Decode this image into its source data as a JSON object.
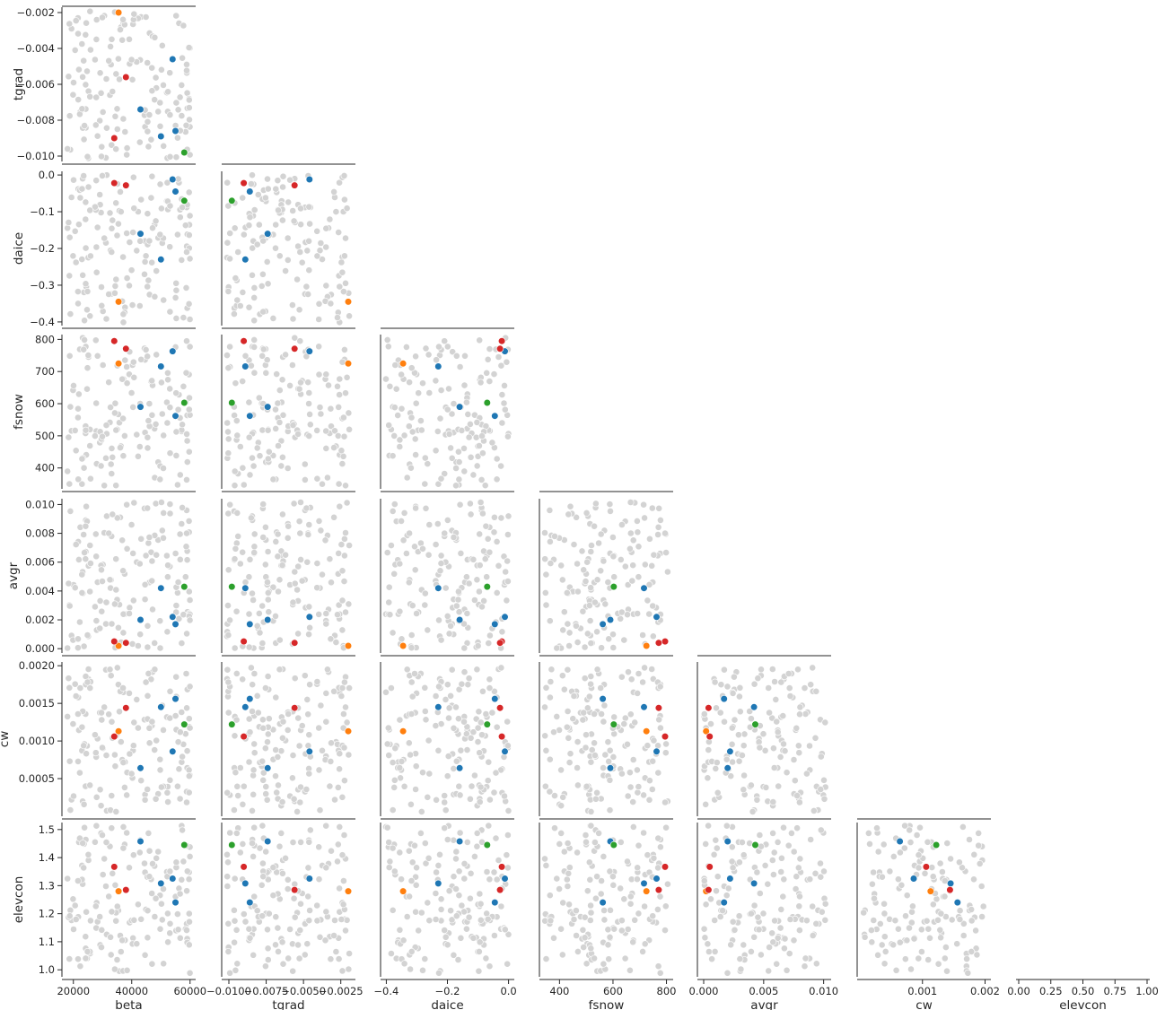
{
  "chart_data": {
    "type": "scatter",
    "variables": [
      "beta",
      "tgrad",
      "daice",
      "fsnow",
      "avgr",
      "cw",
      "elevcon"
    ],
    "background_color": "#d3d3d3",
    "highlight_colors": [
      "#1f77b4",
      "#ff7f0e",
      "#2ca02c",
      "#d62728"
    ],
    "axes": {
      "beta": {
        "label": "beta",
        "range": [
          17000,
          61000
        ],
        "ticks": [
          20000,
          40000,
          60000
        ],
        "tick_labels": [
          "20000",
          "40000",
          "60000"
        ]
      },
      "tgrad": {
        "label": "tgrad",
        "range": [
          -0.0103,
          -0.0017
        ],
        "ticks": [
          -0.01,
          -0.0075,
          -0.005,
          -0.0025
        ],
        "tick_labels": [
          "−0.0100",
          "−0.0075",
          "−0.0050",
          "−0.0025"
        ],
        "y_ticks": [
          -0.01,
          -0.008,
          -0.006,
          -0.004,
          -0.002
        ],
        "y_tick_labels": [
          "−0.010",
          "−0.008",
          "−0.006",
          "−0.004",
          "−0.002"
        ]
      },
      "daice": {
        "label": "daice",
        "range": [
          -0.41,
          0.01
        ],
        "ticks": [
          -0.4,
          -0.2,
          0.0
        ],
        "tick_labels": [
          "−0.4",
          "−0.2",
          "0.0"
        ],
        "y_ticks": [
          -0.4,
          -0.3,
          -0.2,
          -0.1,
          0.0
        ],
        "y_tick_labels": [
          "−0.4",
          "−0.3",
          "−0.2",
          "−0.1",
          "0.0"
        ]
      },
      "fsnow": {
        "label": "fsnow",
        "range": [
          335,
          815
        ],
        "ticks": [
          400,
          600,
          800
        ],
        "tick_labels": [
          "400",
          "600",
          "800"
        ],
        "y_ticks": [
          400,
          500,
          600,
          700,
          800
        ],
        "y_tick_labels": [
          "400",
          "500",
          "600",
          "700",
          "800"
        ]
      },
      "avgr": {
        "label": "avgr",
        "range": [
          -0.0003,
          0.0104
        ],
        "ticks": [
          0.0,
          0.005,
          0.01
        ],
        "tick_labels": [
          "0.000",
          "0.005",
          "0.010"
        ],
        "y_ticks": [
          0.0,
          0.002,
          0.004,
          0.006,
          0.008,
          0.01
        ],
        "y_tick_labels": [
          "0.000",
          "0.002",
          "0.004",
          "0.006",
          "0.008",
          "0.010"
        ]
      },
      "cw": {
        "label": "cw",
        "range": [
          0.0,
          0.00205
        ],
        "ticks": [
          0.001,
          0.002
        ],
        "tick_labels": [
          "0.001",
          "0.002"
        ],
        "y_ticks": [
          0.0005,
          0.001,
          0.0015,
          0.002
        ],
        "y_tick_labels": [
          "0.0005",
          "0.0010",
          "0.0015",
          "0.0020"
        ]
      },
      "elevcon": {
        "label": "elevcon",
        "range": [
          0.0,
          1.0
        ],
        "ticks": [
          0.0,
          0.25,
          0.5,
          0.75,
          1.0
        ],
        "tick_labels": [
          "0.00",
          "0.25",
          "0.50",
          "0.75",
          "1.00"
        ],
        "y_range": [
          0.975,
          1.525
        ],
        "y_ticks": [
          1.0,
          1.1,
          1.2,
          1.3,
          1.4,
          1.5
        ],
        "y_tick_labels": [
          "1.0",
          "1.1",
          "1.2",
          "1.3",
          "1.4",
          "1.5"
        ]
      }
    },
    "highlighted_points": [
      {
        "color": "#1f77b4",
        "beta": 54000,
        "tgrad": -0.0046,
        "daice": -0.012,
        "fsnow": 763,
        "avgr": 0.0022,
        "cw": 0.00086,
        "elevcon": 1.325
      },
      {
        "color": "#1f77b4",
        "beta": 43000,
        "tgrad": -0.0074,
        "daice": -0.16,
        "fsnow": 590,
        "avgr": 0.002,
        "cw": 0.00064,
        "elevcon": 1.458
      },
      {
        "color": "#1f77b4",
        "beta": 50000,
        "tgrad": -0.0089,
        "daice": -0.23,
        "fsnow": 716,
        "avgr": 0.0042,
        "cw": 0.00145,
        "elevcon": 1.308
      },
      {
        "color": "#1f77b4",
        "beta": 55000,
        "tgrad": -0.0086,
        "daice": -0.045,
        "fsnow": 562,
        "avgr": 0.0017,
        "cw": 0.00156,
        "elevcon": 1.24
      },
      {
        "color": "#ff7f0e",
        "beta": 35500,
        "tgrad": -0.002,
        "daice": -0.345,
        "fsnow": 725,
        "avgr": 0.0002,
        "cw": 0.00113,
        "elevcon": 1.28
      },
      {
        "color": "#2ca02c",
        "beta": 58000,
        "tgrad": -0.0098,
        "daice": -0.07,
        "fsnow": 603,
        "avgr": 0.0043,
        "cw": 0.00122,
        "elevcon": 1.445
      },
      {
        "color": "#d62728",
        "beta": 34000,
        "tgrad": -0.009,
        "daice": -0.022,
        "fsnow": 795,
        "avgr": 0.0005,
        "cw": 0.00106,
        "elevcon": 1.367
      },
      {
        "color": "#d62728",
        "beta": 38000,
        "tgrad": -0.0056,
        "daice": -0.028,
        "fsnow": 771,
        "avgr": 0.0004,
        "cw": 0.00144,
        "elevcon": 1.285
      }
    ],
    "background_sample_count": 150,
    "grid": false,
    "legend": "none"
  }
}
